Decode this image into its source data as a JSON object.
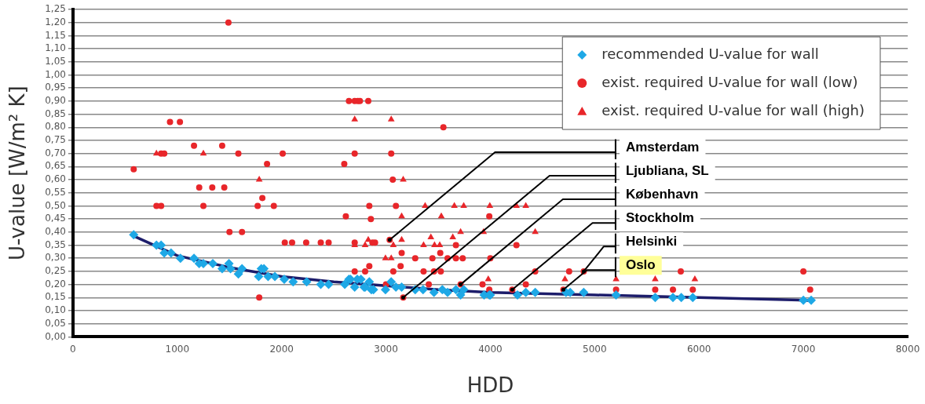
{
  "chart_data": {
    "type": "scatter",
    "xlabel": "HDD",
    "ylabel": "U-value [W/m² K]",
    "xlim": [
      0,
      8000
    ],
    "xticks": [
      0,
      1000,
      2000,
      3000,
      4000,
      5000,
      6000,
      7000,
      8000
    ],
    "ylim": [
      0,
      1.25
    ],
    "yticks": [
      {
        "value": 0,
        "label": "0,00"
      },
      {
        "value": 0.05,
        "label": "0,05"
      },
      {
        "value": 0.1,
        "label": "0,10"
      },
      {
        "value": 0.15,
        "label": "0,15"
      },
      {
        "value": 0.2,
        "label": "0,20"
      },
      {
        "value": 0.25,
        "label": "0,25"
      },
      {
        "value": 0.3,
        "label": "0,30"
      },
      {
        "value": 0.35,
        "label": "0,35"
      },
      {
        "value": 0.4,
        "label": "0,40"
      },
      {
        "value": 0.45,
        "label": "0,45"
      },
      {
        "value": 0.5,
        "label": "0,50"
      },
      {
        "value": 0.55,
        "label": "0,55"
      },
      {
        "value": 0.6,
        "label": "0,60"
      },
      {
        "value": 0.65,
        "label": "0,65"
      },
      {
        "value": 0.7,
        "label": "0,70"
      },
      {
        "value": 0.75,
        "label": "0,75"
      },
      {
        "value": 0.8,
        "label": "0,80"
      },
      {
        "value": 0.85,
        "label": "0,85"
      },
      {
        "value": 0.9,
        "label": "0,90"
      },
      {
        "value": 0.95,
        "label": "0,95"
      },
      {
        "value": 1.0,
        "label": "1,00"
      },
      {
        "value": 1.05,
        "label": "1,05"
      },
      {
        "value": 1.1,
        "label": "1,10"
      },
      {
        "value": 1.15,
        "label": "1,15"
      },
      {
        "value": 1.2,
        "label": "1,20"
      },
      {
        "value": 1.25,
        "label": "1,25"
      }
    ],
    "grid": "y",
    "legend": "top right",
    "series": [
      {
        "type": "line",
        "color": "#1d1d6b",
        "marker": "none",
        "x": [
          582,
          1000,
          1500,
          2000,
          2500,
          3000,
          3500,
          4000,
          5000,
          6000,
          7000,
          7075
        ],
        "values": [
          0.385,
          0.31,
          0.265,
          0.23,
          0.21,
          0.195,
          0.18,
          0.17,
          0.16,
          0.15,
          0.14,
          0.138
        ]
      },
      {
        "name": "recommended U-value for wall",
        "color": "#1ea8e6",
        "marker": "diamond",
        "x": [
          582,
          800,
          845,
          875,
          940,
          1030,
          1160,
          1210,
          1250,
          1340,
          1430,
          1495,
          1510,
          1585,
          1620,
          1780,
          1805,
          1830,
          1870,
          1935,
          2025,
          2110,
          2240,
          2375,
          2450,
          2605,
          2645,
          2660,
          2700,
          2725,
          2760,
          2790,
          2800,
          2840,
          2860,
          2880,
          2995,
          3050,
          3095,
          3150,
          3280,
          3355,
          3460,
          3540,
          3590,
          3670,
          3715,
          3745,
          3940,
          3990,
          4000,
          4260,
          4340,
          4430,
          4725,
          4765,
          4895,
          5205,
          5580,
          5750,
          5830,
          5940,
          7000,
          7075
        ],
        "values": [
          0.39,
          0.35,
          0.35,
          0.32,
          0.32,
          0.3,
          0.3,
          0.28,
          0.28,
          0.28,
          0.26,
          0.28,
          0.26,
          0.24,
          0.26,
          0.23,
          0.26,
          0.26,
          0.23,
          0.23,
          0.22,
          0.21,
          0.21,
          0.2,
          0.2,
          0.2,
          0.22,
          0.22,
          0.19,
          0.22,
          0.22,
          0.19,
          0.19,
          0.21,
          0.18,
          0.18,
          0.18,
          0.21,
          0.19,
          0.19,
          0.18,
          0.18,
          0.17,
          0.18,
          0.17,
          0.18,
          0.16,
          0.18,
          0.16,
          0.16,
          0.16,
          0.16,
          0.17,
          0.17,
          0.17,
          0.17,
          0.17,
          0.16,
          0.15,
          0.15,
          0.15,
          0.15,
          0.14,
          0.14
        ]
      },
      {
        "name": "exist. required U-value for wall (low)",
        "color": "#e8262a",
        "marker": "circle",
        "x": [
          582,
          800,
          845,
          845,
          875,
          930,
          1025,
          1160,
          1210,
          1250,
          1335,
          1430,
          1450,
          1490,
          1500,
          1585,
          1620,
          1770,
          1785,
          1815,
          1860,
          1925,
          2010,
          2030,
          2100,
          2235,
          2375,
          2450,
          2600,
          2615,
          2645,
          2700,
          2730,
          2750,
          2830,
          2700,
          2700,
          2700,
          2800,
          2840,
          2840,
          2855,
          2870,
          2895,
          3000,
          3035,
          3050,
          3065,
          3070,
          3095,
          3140,
          3150,
          3165,
          3280,
          3360,
          3410,
          3445,
          3460,
          3520,
          3525,
          3550,
          3590,
          3670,
          3670,
          3715,
          3735,
          3925,
          3990,
          3990,
          4000,
          4210,
          4250,
          4340,
          4430,
          4700,
          4755,
          4895,
          5205,
          5580,
          5750,
          5825,
          5940,
          7000,
          7065
        ],
        "values": [
          0.64,
          0.5,
          0.5,
          0.7,
          0.7,
          0.82,
          0.82,
          0.73,
          0.57,
          0.5,
          0.57,
          0.73,
          0.57,
          1.2,
          0.4,
          0.7,
          0.4,
          0.5,
          0.15,
          0.53,
          0.66,
          0.5,
          0.7,
          0.36,
          0.36,
          0.36,
          0.36,
          0.36,
          0.66,
          0.46,
          0.9,
          0.9,
          0.9,
          0.9,
          0.9,
          0.7,
          0.36,
          0.25,
          0.25,
          0.5,
          0.27,
          0.45,
          0.36,
          0.36,
          0.2,
          0.37,
          0.7,
          0.6,
          0.25,
          0.5,
          0.27,
          0.32,
          0.15,
          0.3,
          0.25,
          0.2,
          0.3,
          0.25,
          0.32,
          0.25,
          0.8,
          0.3,
          0.3,
          0.35,
          0.2,
          0.3,
          0.2,
          0.46,
          0.18,
          0.3,
          0.18,
          0.35,
          0.2,
          0.25,
          0.18,
          0.25,
          0.25,
          0.18,
          0.18,
          0.18,
          0.25,
          0.18,
          0.25,
          0.18
        ]
      },
      {
        "name": "exist. required U-value for wall (high)",
        "color": "#e8262a",
        "marker": "triangle",
        "x": [
          800,
          1250,
          1785,
          2700,
          2700,
          2800,
          2830,
          2995,
          3050,
          3050,
          3070,
          3150,
          3150,
          3165,
          3360,
          3375,
          3430,
          3465,
          3515,
          3530,
          3640,
          3655,
          3715,
          3745,
          3935,
          3980,
          3995,
          4250,
          4340,
          4430,
          4715,
          5205,
          5580,
          5960
        ],
        "values": [
          0.7,
          0.7,
          0.6,
          0.83,
          0.35,
          0.35,
          0.37,
          0.3,
          0.3,
          0.83,
          0.35,
          0.46,
          0.37,
          0.6,
          0.35,
          0.5,
          0.38,
          0.35,
          0.35,
          0.46,
          0.38,
          0.5,
          0.4,
          0.5,
          0.4,
          0.22,
          0.5,
          0.5,
          0.5,
          0.4,
          0.22,
          0.22,
          0.22,
          0.22
        ]
      }
    ],
    "annotations": [
      {
        "text": "Amsterdam",
        "x": 3035,
        "y": 0.37
      },
      {
        "text": "Ljubliana, SL",
        "x": 3165,
        "y": 0.15
      },
      {
        "text": "København",
        "x": 3715,
        "y": 0.2
      },
      {
        "text": "Stockholm",
        "x": 4210,
        "y": 0.18
      },
      {
        "text": "Helsinki",
        "x": 4895,
        "y": 0.25
      },
      {
        "text": "Oslo",
        "x": 4700,
        "y": 0.18
      }
    ]
  }
}
